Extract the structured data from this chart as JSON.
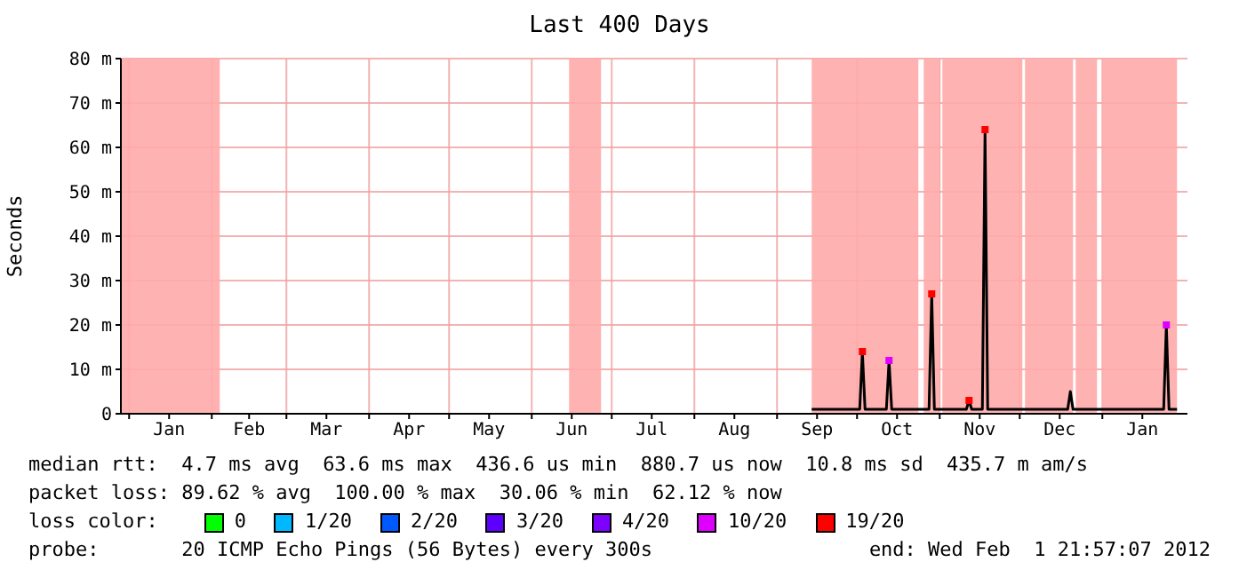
{
  "chart_data": {
    "type": "line",
    "title": "Last 400 Days",
    "ylabel": "Seconds",
    "legend_title": "loss color:",
    "legend": "bottom",
    "grid": true,
    "marker": "none",
    "line_style": "solid",
    "xlim": [
      "2010-12-28T21:57",
      "2012-02-01T21:57"
    ],
    "xticks": [
      {
        "value": "2011-01-01",
        "label": null
      },
      {
        "value": "2011-01-16",
        "label": "Jan"
      },
      {
        "value": "2011-02-01",
        "label": null
      },
      {
        "value": "2011-02-15",
        "label": "Feb"
      },
      {
        "value": "2011-03-01",
        "label": null
      },
      {
        "value": "2011-03-16",
        "label": "Mar"
      },
      {
        "value": "2011-04-01",
        "label": null
      },
      {
        "value": "2011-04-16",
        "label": "Apr"
      },
      {
        "value": "2011-05-01",
        "label": null
      },
      {
        "value": "2011-05-16",
        "label": "May"
      },
      {
        "value": "2011-06-01",
        "label": null
      },
      {
        "value": "2011-06-16",
        "label": "Jun"
      },
      {
        "value": "2011-07-01",
        "label": null
      },
      {
        "value": "2011-07-16",
        "label": "Jul"
      },
      {
        "value": "2011-08-01",
        "label": null
      },
      {
        "value": "2011-08-16",
        "label": "Aug"
      },
      {
        "value": "2011-09-01",
        "label": null
      },
      {
        "value": "2011-09-16",
        "label": "Sep"
      },
      {
        "value": "2011-10-01",
        "label": null
      },
      {
        "value": "2011-10-16",
        "label": "Oct"
      },
      {
        "value": "2011-11-01",
        "label": null
      },
      {
        "value": "2011-11-16",
        "label": "Nov"
      },
      {
        "value": "2011-12-01",
        "label": null
      },
      {
        "value": "2011-12-16",
        "label": "Dec"
      },
      {
        "value": "2012-01-01",
        "label": null
      },
      {
        "value": "2012-01-16",
        "label": "Jan"
      }
    ],
    "ylim": [
      0,
      80
    ],
    "yticks": [
      0,
      {
        "value": 10,
        "label": "10 m"
      },
      {
        "value": 20,
        "label": "20 m"
      },
      {
        "value": 30,
        "label": "30 m"
      },
      {
        "value": 40,
        "label": "40 m"
      },
      {
        "value": 50,
        "label": "50 m"
      },
      {
        "value": 60,
        "label": "60 m"
      },
      {
        "value": 70,
        "label": "70 m"
      },
      {
        "value": 80,
        "label": "80 m"
      }
    ],
    "bands": [
      {
        "axis": "x",
        "from": "2010-12-29",
        "to": "2011-02-04",
        "color": "#ffaaaa"
      },
      {
        "axis": "x",
        "from": "2011-06-15",
        "to": "2011-06-27",
        "color": "#ffaaaa"
      },
      {
        "axis": "x",
        "from": "2011-09-14",
        "to": "2011-10-24",
        "color": "#ffaaaa"
      },
      {
        "axis": "x",
        "from": "2011-10-26",
        "to": "2011-11-01",
        "color": "#ffaaaa"
      },
      {
        "axis": "x",
        "from": "2011-11-02",
        "to": "2011-12-02",
        "color": "#ffaaaa"
      },
      {
        "axis": "x",
        "from": "2011-12-03",
        "to": "2011-12-21",
        "color": "#ffaaaa"
      },
      {
        "axis": "x",
        "from": "2011-12-22",
        "to": "2011-12-30",
        "color": "#ffaaaa"
      },
      {
        "axis": "x",
        "from": "2012-01-01",
        "to": "2012-01-29",
        "color": "#ffaaaa"
      }
    ],
    "series": [
      {
        "color": "#000000",
        "x": [
          "2011-09-14",
          "2011-09-25",
          "2011-10-02",
          "2011-10-03",
          "2011-10-04",
          "2011-10-12",
          "2011-10-13",
          "2011-10-14",
          "2011-10-28",
          "2011-10-29",
          "2011-10-30",
          "2011-11-11",
          "2011-11-12",
          "2011-11-13",
          "2011-11-17",
          "2011-11-18",
          "2011-11-19",
          "2011-12-19",
          "2011-12-20",
          "2011-12-21",
          "2012-01-24",
          "2012-01-25",
          "2012-01-26",
          "2012-01-29"
        ],
        "values": [
          1,
          1,
          1,
          14,
          1,
          1,
          12,
          1,
          1,
          27,
          1,
          1,
          3,
          1,
          1,
          64,
          1,
          1,
          5,
          1,
          1,
          20,
          1,
          1
        ]
      },
      {
        "type": "scatter",
        "marker": "square",
        "name": "0",
        "color": "#00ff00"
      },
      {
        "type": "scatter",
        "marker": "square",
        "name": "1/20",
        "color": "#00b8ff"
      },
      {
        "type": "scatter",
        "marker": "square",
        "name": "2/20",
        "color": "#0059ff"
      },
      {
        "type": "scatter",
        "marker": "square",
        "name": "3/20",
        "color": "#5e00ff"
      },
      {
        "type": "scatter",
        "marker": "square",
        "name": "4/20",
        "color": "#7e00ff"
      },
      {
        "type": "scatter",
        "marker": "square",
        "name": "10/20",
        "color": "#dd00ff",
        "x": [
          "2011-10-13",
          "2012-01-25"
        ],
        "values": [
          12,
          20
        ]
      },
      {
        "type": "scatter",
        "marker": "square",
        "name": "19/20",
        "color": "#ff0000",
        "x": [
          "2011-10-03",
          "2011-10-29",
          "2011-11-18",
          "2011-11-12"
        ],
        "values": [
          14,
          27,
          64,
          3
        ]
      }
    ],
    "annotations": [
      "median rtt:  4.7 ms avg  63.6 ms max  436.6 us min  880.7 us now  10.8 ms sd  435.7 m am/s",
      "packet loss: 89.62 % avg  100.00 % max  30.06 % min  62.12 % now",
      "probe:       20 ICMP Echo Pings (56 Bytes) every 300s",
      "end: Wed Feb  1 21:57:07 2012"
    ]
  }
}
